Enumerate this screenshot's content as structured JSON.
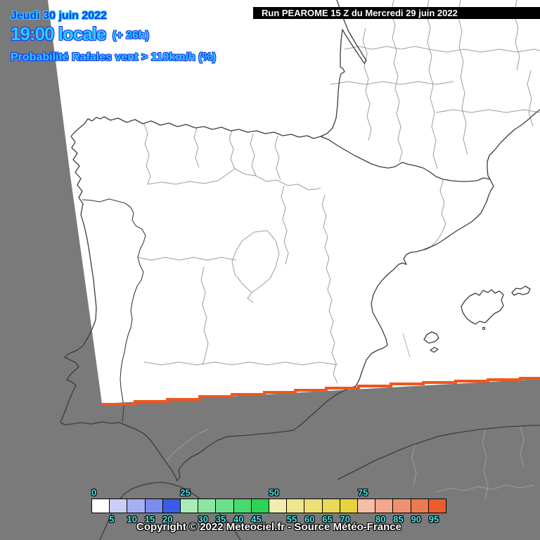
{
  "header": {
    "date_line": "Jeudi 30 juin 2022",
    "time_line": "19:00 locale",
    "offset": "(+ 26h)",
    "subtitle": "Probabilité Rafales vent > 110km/h (%)"
  },
  "run_info": {
    "label": "Run PEAROME 15 Z du Mercredi 29 juin 2022"
  },
  "legend": {
    "unit": "%",
    "top_labels": [
      0,
      25,
      50,
      75
    ],
    "bottom_labels": [
      5,
      10,
      15,
      20,
      30,
      35,
      40,
      45,
      55,
      60,
      65,
      70,
      80,
      85,
      90,
      95
    ],
    "cells": [
      "#ffffff",
      "#c9cef7",
      "#a6b1f3",
      "#7b8cef",
      "#3b5ce9",
      "#a9ecb8",
      "#8ce5a2",
      "#6cdf88",
      "#49d96e",
      "#2cd455",
      "#f1edae",
      "#efe692",
      "#ece075",
      "#ead958",
      "#e8d33b",
      "#f6bda9",
      "#f3a78c",
      "#f19070",
      "#ee7a52",
      "#ec5c2e"
    ]
  },
  "footer": {
    "copyright": "Copyright © 2022 Meteociel.fr - Source Météo-France"
  },
  "colors": {
    "outside_domain_gray": "#7a7a7a",
    "domain_white": "#ffffff",
    "domain_edge_orange": "#f0561e",
    "coastline_dark": "#3c3c3c",
    "region_border_gray": "#9d9d9d",
    "header_blue": "#1b3af0",
    "header_cyan": "#29ceff",
    "legend_label_cyan": "#52e7e8"
  }
}
